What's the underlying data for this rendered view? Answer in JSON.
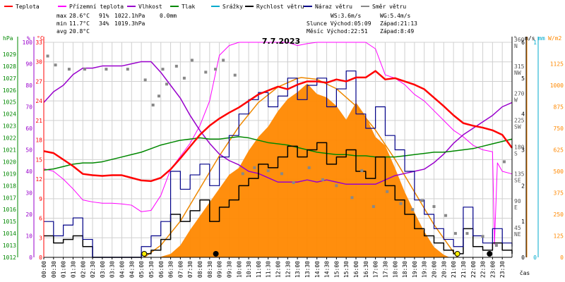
{
  "title": "7.7.2023",
  "x_unit_label": "čas",
  "legend": [
    {
      "label": "Teplota",
      "color": "#ff0000"
    },
    {
      "label": "Přízemní teplota",
      "color": "#ff00ff"
    },
    {
      "label": "Vlhkost",
      "color": "#9900cc"
    },
    {
      "label": "Tlak",
      "color": "#008800"
    },
    {
      "label": "Srážky",
      "color": "#00aacc"
    },
    {
      "label": "Rychlost větru",
      "color": "#000000"
    },
    {
      "label": "Náraz větru",
      "color": "#000088"
    },
    {
      "label": "Směr větru",
      "color": "#888888"
    }
  ],
  "stats": {
    "max_label": "max",
    "max_temp": "28.6°C",
    "max_hum": "91%",
    "max_press": "1022.1hPa",
    "precip": "0.0mm",
    "min_label": "min",
    "min_temp": "11.7°C",
    "min_hum": "34%",
    "min_press": "1019.3hPa",
    "avg_label": "avg",
    "avg_temp": "20.8°C"
  },
  "sun_info": {
    "ws": "WS:3.6m/s",
    "wg": "WG:5.4m/s",
    "sun": "Slunce Východ:05:09",
    "sun_set": "Západ:21:13",
    "moon": "Měsíc Východ:22:51",
    "moon_set": "Západ:8:49"
  },
  "axis_units": {
    "hpa": "hPa",
    "pct": "%",
    "degc": "°C",
    "deg": "°",
    "ms": "m/s",
    "mm": "mm",
    "wm2": "W/m2"
  },
  "colors": {
    "temp": "#ff0000",
    "ground_temp": "#ff00ff",
    "humidity": "#9900cc",
    "pressure": "#008800",
    "precip": "#00aacc",
    "wind": "#000000",
    "gust": "#000088",
    "dir": "#888888",
    "solar": "#ff8800",
    "solar_theory": "#ee8800",
    "grid": "#d0d0d0"
  },
  "chart_data": {
    "type": "line",
    "x_range_hours": [
      0,
      24
    ],
    "x_ticks": [
      "00:00",
      "00:30",
      "01:00",
      "01:30",
      "02:00",
      "02:30",
      "03:00",
      "03:30",
      "04:00",
      "04:30",
      "05:00",
      "05:30",
      "06:00",
      "06:30",
      "07:00",
      "07:30",
      "08:00",
      "08:30",
      "09:00",
      "09:30",
      "10:00",
      "10:30",
      "11:00",
      "11:30",
      "12:00",
      "12:30",
      "13:00",
      "13:30",
      "14:00",
      "14:30",
      "15:00",
      "15:30",
      "16:00",
      "16:30",
      "17:00",
      "17:30",
      "18:00",
      "18:30",
      "19:00",
      "19:30",
      "20:00",
      "20:30",
      "21:00",
      "21:30",
      "22:00",
      "22:30",
      "23:00",
      "23:30"
    ],
    "axes": {
      "pressure_hpa": {
        "range": [
          1012,
          1030
        ],
        "ticks": [
          1012,
          1013,
          1014,
          1015,
          1016,
          1017,
          1018,
          1019,
          1020,
          1021,
          1022,
          1023,
          1024,
          1025,
          1026,
          1027,
          1028,
          1029
        ]
      },
      "humidity_pct": {
        "range": [
          0,
          100
        ],
        "ticks": [
          0,
          10,
          20,
          30,
          40,
          50,
          60,
          70,
          80,
          90,
          100
        ]
      },
      "temp_c": {
        "range": [
          0,
          33
        ],
        "ticks": [
          0,
          3,
          6,
          9,
          12,
          15,
          18,
          21,
          24,
          27,
          30,
          33
        ]
      },
      "wind_dir_deg": {
        "range": [
          0,
          360
        ],
        "ticks": [
          {
            "v": 45,
            "l": "45",
            "d": "NE"
          },
          {
            "v": 90,
            "l": "90",
            "d": "E"
          },
          {
            "v": 135,
            "l": "135",
            "d": "SE"
          },
          {
            "v": 180,
            "l": "180",
            "d": "S"
          },
          {
            "v": 225,
            "l": "225",
            "d": "SW"
          },
          {
            "v": 270,
            "l": "270",
            "d": "W"
          },
          {
            "v": 315,
            "l": "315",
            "d": "NW"
          },
          {
            "v": 360,
            "l": "360",
            "d": "N"
          }
        ]
      },
      "wind_ms": {
        "range": [
          0,
          6
        ],
        "ticks": [
          0,
          1,
          2,
          3,
          4,
          5,
          6
        ]
      },
      "precip_mm": {
        "range": [
          0,
          1
        ],
        "ticks": [
          0,
          1
        ]
      },
      "solar_wm2": {
        "range": [
          0,
          1250
        ],
        "ticks": [
          0,
          125,
          250,
          375,
          500,
          625,
          750,
          875,
          1000,
          1125
        ]
      }
    },
    "series": [
      {
        "name": "Teplota",
        "unit": "°C",
        "x": [
          0,
          0.5,
          1,
          1.5,
          2,
          2.5,
          3,
          3.5,
          4,
          4.5,
          5,
          5.5,
          6,
          6.5,
          7,
          7.5,
          8,
          8.5,
          9,
          9.5,
          10,
          10.5,
          11,
          11.5,
          12,
          12.5,
          13,
          13.5,
          14,
          14.5,
          15,
          15.5,
          16,
          16.5,
          17,
          17.5,
          18,
          18.5,
          19,
          19.5,
          20,
          20.5,
          21,
          21.5,
          22,
          22.5,
          23,
          23.5,
          24
        ],
        "y": [
          16.3,
          16.0,
          15.0,
          14.0,
          12.8,
          12.6,
          12.5,
          12.6,
          12.6,
          12.2,
          11.8,
          11.7,
          12.2,
          13.5,
          15.2,
          17.0,
          18.8,
          20.2,
          21.3,
          22.2,
          23.0,
          24.0,
          25.0,
          25.6,
          26.2,
          25.8,
          26.5,
          27.0,
          27.0,
          26.8,
          27.3,
          27.0,
          27.6,
          27.6,
          28.6,
          27.3,
          27.5,
          27.0,
          26.5,
          25.8,
          24.5,
          23.2,
          21.8,
          20.6,
          20.2,
          19.9,
          19.5,
          18.8,
          16.8
        ]
      },
      {
        "name": "Přízemní teplota",
        "unit": "°C",
        "x": [
          0,
          0.5,
          1,
          1.5,
          2,
          2.5,
          3,
          3.5,
          4,
          4.5,
          5,
          5.5,
          6,
          6.5,
          7,
          7.5,
          8,
          8.5,
          9,
          9.5,
          10,
          10.5,
          11,
          11.5,
          12,
          12.5,
          13,
          13.5,
          14,
          14.5,
          15,
          15.5,
          16,
          16.5,
          17,
          17.5,
          18,
          18.5,
          19,
          19.5,
          20,
          20.5,
          21,
          21.5,
          22,
          22.5,
          23,
          23.1,
          23.25,
          23.5,
          24
        ],
        "y": [
          13.6,
          13.2,
          12.0,
          10.5,
          8.8,
          8.5,
          8.3,
          8.3,
          8.2,
          8.0,
          7.0,
          7.2,
          9.5,
          13.5,
          15.5,
          17.5,
          20.2,
          24.0,
          31.0,
          32.5,
          33.0,
          33.0,
          33.0,
          33.0,
          33.0,
          33.0,
          32.5,
          32.8,
          33.0,
          33.0,
          33.0,
          33.0,
          33.0,
          33.0,
          32.0,
          28.0,
          27.5,
          26.5,
          25.0,
          24.0,
          22.5,
          21.0,
          19.5,
          18.5,
          17.2,
          16.5,
          16.2,
          2.0,
          14.5,
          13.2,
          12.8
        ]
      },
      {
        "name": "Vlhkost",
        "unit": "%",
        "x": [
          0,
          0.5,
          1,
          1.5,
          2,
          2.5,
          3,
          3.5,
          4,
          4.5,
          5,
          5.5,
          6,
          6.5,
          7,
          7.5,
          8,
          8.5,
          9,
          9.5,
          10,
          10.5,
          11,
          11.5,
          12,
          12.5,
          13,
          13.5,
          14,
          14.5,
          15,
          15.5,
          16,
          16.5,
          17,
          17.5,
          18,
          18.5,
          19,
          19.5,
          20,
          20.5,
          21,
          21.5,
          22,
          22.5,
          23,
          23.5,
          24
        ],
        "y": [
          72,
          77,
          80,
          85,
          88,
          88,
          89,
          89,
          89,
          90,
          91,
          91,
          86,
          80,
          74,
          66,
          59,
          53,
          48,
          45,
          43,
          40,
          39,
          37,
          35,
          35,
          35,
          36,
          35,
          36,
          35,
          34,
          34,
          34,
          34,
          36,
          38,
          39,
          40,
          41,
          44,
          48,
          53,
          57,
          60,
          63,
          66,
          70,
          72
        ]
      },
      {
        "name": "Tlak",
        "unit": "hPa",
        "x": [
          0,
          0.5,
          1,
          1.5,
          2,
          2.5,
          3,
          3.5,
          4,
          4.5,
          5,
          5.5,
          6,
          6.5,
          7,
          7.5,
          8,
          8.5,
          9,
          9.5,
          10,
          10.5,
          11,
          11.5,
          12,
          12.5,
          13,
          13.5,
          14,
          14.5,
          15,
          15.5,
          16,
          16.5,
          17,
          17.5,
          18,
          18.5,
          19,
          19.5,
          20,
          20.5,
          21,
          21.5,
          22,
          22.5,
          23,
          23.5,
          24
        ],
        "y": [
          1019.3,
          1019.4,
          1019.6,
          1019.8,
          1019.9,
          1019.9,
          1020.0,
          1020.2,
          1020.4,
          1020.6,
          1020.8,
          1021.1,
          1021.4,
          1021.6,
          1021.8,
          1021.9,
          1022.0,
          1021.9,
          1021.9,
          1022.0,
          1022.1,
          1022.0,
          1021.8,
          1021.6,
          1021.5,
          1021.4,
          1021.2,
          1021.0,
          1020.8,
          1020.7,
          1020.6,
          1020.6,
          1020.5,
          1020.5,
          1020.4,
          1020.4,
          1020.4,
          1020.5,
          1020.6,
          1020.7,
          1020.8,
          1020.8,
          1020.9,
          1021.0,
          1021.1,
          1021.3,
          1021.5,
          1021.7,
          1021.9
        ]
      },
      {
        "name": "Rychlost větru",
        "unit": "m/s",
        "x": [
          0,
          0.5,
          1,
          1.5,
          2,
          2.5,
          3,
          3.5,
          4,
          4.5,
          5,
          5.5,
          6,
          6.5,
          7,
          7.5,
          8,
          8.5,
          9,
          9.5,
          10,
          10.5,
          11,
          11.5,
          12,
          12.5,
          13,
          13.5,
          14,
          14.5,
          15,
          15.5,
          16,
          16.5,
          17,
          17.5,
          18,
          18.5,
          19,
          19.5,
          20,
          20.5,
          21,
          21.5,
          22,
          22.5,
          23,
          23.5,
          24
        ],
        "y": [
          0.6,
          0.4,
          0.5,
          0.6,
          0.3,
          0,
          0,
          0,
          0,
          0,
          0.1,
          0.2,
          0.5,
          1.2,
          1.0,
          1.3,
          1.6,
          1.0,
          1.4,
          1.6,
          2.0,
          2.2,
          2.6,
          2.5,
          2.8,
          3.1,
          2.8,
          3.0,
          3.2,
          2.6,
          2.8,
          3.0,
          2.4,
          2.2,
          2.8,
          2.0,
          1.6,
          1.2,
          0.8,
          0.6,
          0.4,
          0.2,
          0.1,
          0.8,
          0.3,
          0.2,
          0.4,
          0.2,
          0.1
        ]
      },
      {
        "name": "Náraz větru",
        "unit": "m/s",
        "x": [
          0,
          0.5,
          1,
          1.5,
          2,
          2.5,
          3,
          3.5,
          4,
          4.5,
          5,
          5.5,
          6,
          6.5,
          7,
          7.5,
          8,
          8.5,
          9,
          9.5,
          10,
          10.5,
          11,
          11.5,
          12,
          12.5,
          13,
          13.5,
          14,
          14.5,
          15,
          15.5,
          16,
          16.5,
          17,
          17.5,
          18,
          18.5,
          19,
          19.5,
          20,
          20.5,
          21,
          21.5,
          22,
          22.5,
          23,
          23.5,
          24
        ],
        "y": [
          1.0,
          0.6,
          0.9,
          1.1,
          0.5,
          0,
          0,
          0,
          0,
          0,
          0.3,
          0.6,
          1.0,
          2.4,
          1.9,
          2.3,
          2.6,
          2.0,
          2.8,
          3.4,
          4.0,
          4.4,
          4.6,
          4.2,
          4.5,
          5.0,
          4.4,
          4.8,
          5.0,
          4.2,
          4.7,
          5.2,
          4.0,
          3.6,
          4.2,
          3.4,
          3.0,
          2.4,
          1.6,
          1.2,
          0.8,
          0.5,
          0.3,
          1.4,
          0.6,
          0.4,
          0.8,
          0.4,
          0.3
        ]
      },
      {
        "name": "Směr větru",
        "unit": "°",
        "x": [
          0.2,
          0.6,
          1.3,
          2.1,
          3.2,
          4.3,
          5.2,
          5.6,
          5.9,
          6.1,
          6.3,
          6.8,
          7.2,
          7.6,
          8.3,
          8.8,
          9.2,
          9.8,
          10.2,
          10.8,
          11.5,
          12.2,
          12.8,
          13.6,
          14.3,
          15.0,
          15.8,
          16.3,
          16.9,
          17.6,
          18.3,
          18.9,
          19.4,
          20.0,
          20.6,
          21.1,
          21.7,
          22.5,
          23.2,
          23.6
        ],
        "y": [
          337,
          322,
          315,
          315,
          315,
          315,
          297,
          255,
          270,
          315,
          290,
          320,
          300,
          330,
          310,
          315,
          330,
          305,
          140,
          150,
          145,
          140,
          125,
          150,
          130,
          120,
          100,
          145,
          85,
          110,
          90,
          80,
          95,
          85,
          70,
          40,
          40,
          35,
          20,
          160
        ]
      },
      {
        "name": "Srážky",
        "unit": "mm",
        "x": [
          0,
          24
        ],
        "y": [
          0,
          0
        ]
      }
    ],
    "solar": {
      "name": "Sluneční záření",
      "unit": "W/m2",
      "x": [
        5.9,
        6.5,
        7.0,
        7.5,
        8.0,
        8.5,
        9.0,
        9.5,
        10.0,
        10.5,
        11.0,
        11.5,
        12.0,
        12.5,
        13.0,
        13.5,
        14.0,
        14.5,
        15.0,
        15.5,
        16.0,
        16.5,
        17.0,
        17.5,
        18.0,
        18.5,
        19.0,
        19.5,
        20.0,
        20.5,
        20.8
      ],
      "y": [
        0,
        20,
        70,
        160,
        240,
        320,
        400,
        480,
        520,
        620,
        700,
        760,
        850,
        920,
        960,
        1010,
        950,
        930,
        880,
        800,
        900,
        820,
        700,
        650,
        520,
        380,
        260,
        150,
        60,
        15,
        0
      ],
      "theory_x": [
        5.15,
        6,
        7,
        8,
        9,
        10,
        11,
        12,
        13,
        13.2,
        14,
        15,
        16,
        17,
        18,
        19,
        20,
        21,
        21.2
      ],
      "theory_y": [
        0,
        70,
        210,
        400,
        590,
        760,
        900,
        990,
        1040,
        1045,
        1035,
        980,
        880,
        740,
        570,
        380,
        190,
        30,
        0
      ]
    }
  }
}
